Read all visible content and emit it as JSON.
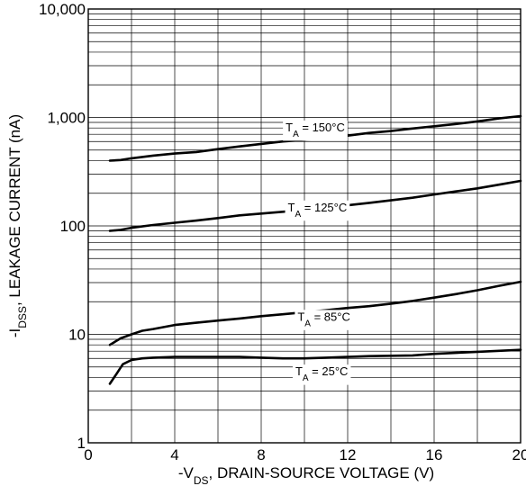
{
  "chart_data": {
    "type": "line",
    "x_scale": "linear",
    "y_scale": "log",
    "xlim": [
      0,
      20
    ],
    "ylim": [
      1,
      10000
    ],
    "grid": true,
    "x_tick_labels": [
      "0",
      "4",
      "8",
      "12",
      "16",
      "20"
    ],
    "x_tick_values": [
      0,
      4,
      8,
      12,
      16,
      20
    ],
    "y_tick_labels": [
      "1",
      "10",
      "100",
      "1,000",
      "10,000"
    ],
    "y_tick_values": [
      1,
      10,
      100,
      1000,
      10000
    ],
    "xlabel": {
      "prefix": "-V",
      "subscript": "DS",
      "suffix": ", DRAIN-SOURCE VOLTAGE (V)"
    },
    "ylabel": {
      "prefix": "-I",
      "subscript": "DSS",
      "suffix": ", LEAKAGE CURRENT (nA)"
    },
    "series": [
      {
        "label": {
          "prefix": "T",
          "subscript": "A",
          "suffix": " = 150°C"
        },
        "label_at": [
          10.5,
          820
        ],
        "points": [
          [
            1.0,
            400
          ],
          [
            1.5,
            405
          ],
          [
            2,
            420
          ],
          [
            3,
            445
          ],
          [
            4,
            465
          ],
          [
            5,
            480
          ],
          [
            6,
            510
          ],
          [
            7,
            540
          ],
          [
            8,
            570
          ],
          [
            9,
            600
          ],
          [
            10,
            620
          ],
          [
            11,
            650
          ],
          [
            12,
            680
          ],
          [
            13,
            720
          ],
          [
            14,
            750
          ],
          [
            15,
            790
          ],
          [
            16,
            830
          ],
          [
            17,
            870
          ],
          [
            18,
            920
          ],
          [
            19,
            980
          ],
          [
            20,
            1030
          ]
        ]
      },
      {
        "label": {
          "prefix": "T",
          "subscript": "A",
          "suffix": " = 125°C"
        },
        "label_at": [
          10.6,
          150
        ],
        "points": [
          [
            1.0,
            90
          ],
          [
            1.5,
            92
          ],
          [
            2,
            96
          ],
          [
            3,
            102
          ],
          [
            4,
            107
          ],
          [
            5,
            112
          ],
          [
            6,
            118
          ],
          [
            7,
            125
          ],
          [
            8,
            130
          ],
          [
            9,
            135
          ],
          [
            10,
            140
          ],
          [
            11,
            148
          ],
          [
            12,
            155
          ],
          [
            13,
            163
          ],
          [
            14,
            172
          ],
          [
            15,
            182
          ],
          [
            16,
            195
          ],
          [
            17,
            208
          ],
          [
            18,
            222
          ],
          [
            19,
            240
          ],
          [
            20,
            260
          ]
        ]
      },
      {
        "label": {
          "prefix": "T",
          "subscript": "A",
          "suffix": " = 85°C"
        },
        "label_at": [
          10.9,
          14.7
        ],
        "points": [
          [
            1.0,
            8.0
          ],
          [
            1.5,
            9.2
          ],
          [
            2,
            10.0
          ],
          [
            2.5,
            10.8
          ],
          [
            3,
            11.2
          ],
          [
            4,
            12.2
          ],
          [
            5,
            12.8
          ],
          [
            6,
            13.4
          ],
          [
            7,
            14.0
          ],
          [
            8,
            14.7
          ],
          [
            9,
            15.3
          ],
          [
            10,
            16.0
          ],
          [
            11,
            16.7
          ],
          [
            12,
            17.5
          ],
          [
            13,
            18.2
          ],
          [
            14,
            19.2
          ],
          [
            15,
            20.3
          ],
          [
            16,
            21.8
          ],
          [
            17,
            23.5
          ],
          [
            18,
            25.5
          ],
          [
            19,
            28.0
          ],
          [
            20,
            30.5
          ]
        ]
      },
      {
        "label": {
          "prefix": "T",
          "subscript": "A",
          "suffix": " = 25°C"
        },
        "label_at": [
          10.8,
          4.6
        ],
        "points": [
          [
            1.0,
            3.5
          ],
          [
            1.3,
            4.3
          ],
          [
            1.6,
            5.3
          ],
          [
            2,
            5.8
          ],
          [
            2.5,
            6.0
          ],
          [
            3,
            6.1
          ],
          [
            4,
            6.2
          ],
          [
            5,
            6.2
          ],
          [
            6,
            6.2
          ],
          [
            7,
            6.2
          ],
          [
            8,
            6.1
          ],
          [
            9,
            6.0
          ],
          [
            10,
            6.0
          ],
          [
            11,
            6.1
          ],
          [
            12,
            6.2
          ],
          [
            13,
            6.3
          ],
          [
            14,
            6.35
          ],
          [
            15,
            6.4
          ],
          [
            16,
            6.6
          ],
          [
            17,
            6.75
          ],
          [
            18,
            6.9
          ],
          [
            19,
            7.05
          ],
          [
            20,
            7.2
          ]
        ]
      }
    ]
  }
}
